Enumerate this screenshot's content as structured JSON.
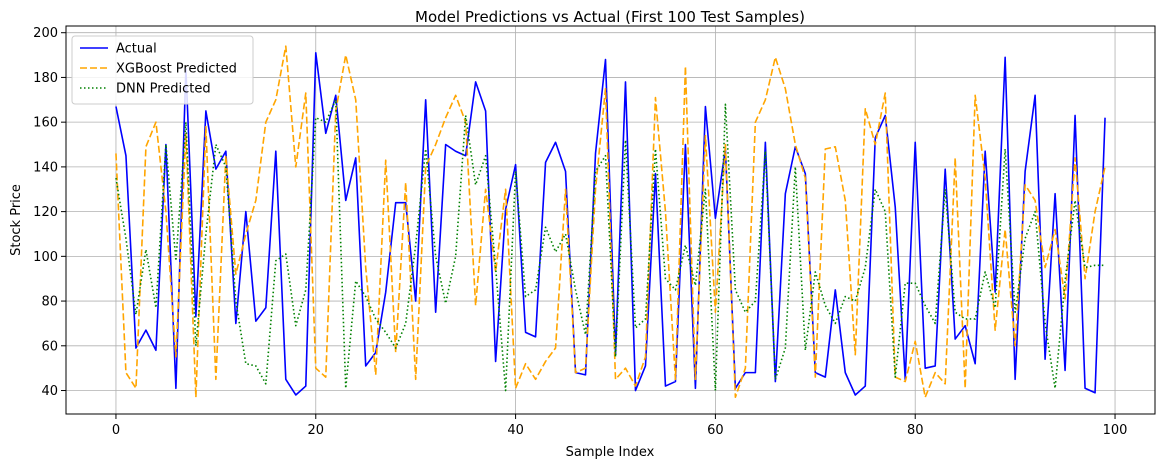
{
  "chart_data": {
    "type": "line",
    "title": "Model Predictions vs Actual (First 100 Test Samples)",
    "xlabel": "Sample Index",
    "ylabel": "Stock Price",
    "xlim": [
      -5,
      104
    ],
    "ylim": [
      29.5,
      203
    ],
    "xticks": [
      0,
      20,
      40,
      60,
      80,
      100
    ],
    "yticks": [
      40,
      60,
      80,
      100,
      120,
      140,
      160,
      180,
      200
    ],
    "grid": true,
    "legend_position": "top-left",
    "series": [
      {
        "name": "Actual",
        "color": "#0000ff",
        "style": "solid",
        "values": [
          167,
          145,
          59,
          67,
          58,
          150,
          41,
          184,
          73,
          165,
          139,
          147,
          70,
          120,
          71,
          77,
          147,
          45,
          38,
          42,
          191,
          155,
          172,
          125,
          144,
          51,
          57,
          84,
          124,
          124,
          80,
          170,
          75,
          150,
          147,
          145,
          178,
          165,
          53,
          121,
          141,
          66,
          64,
          142,
          151,
          138,
          48,
          47,
          146,
          188,
          56,
          178,
          40,
          51,
          137,
          42,
          44,
          150,
          41,
          167,
          117,
          148,
          41,
          48,
          48,
          151,
          44,
          128,
          149,
          137,
          48,
          46,
          85,
          48,
          38,
          42,
          153,
          163,
          122,
          45,
          151,
          50,
          51,
          139,
          63,
          69,
          52,
          147,
          84,
          189,
          45,
          138,
          172,
          54,
          128,
          49,
          163,
          41,
          39,
          162
        ]
      },
      {
        "name": "XGBoost Predicted",
        "color": "#ffa500",
        "style": "dashed",
        "values": [
          146,
          48,
          41,
          149,
          160,
          120,
          55,
          155,
          37,
          158,
          45,
          145,
          92,
          110,
          125,
          160,
          170,
          194,
          140,
          173,
          50,
          46,
          165,
          190,
          170,
          95,
          47,
          143,
          57,
          133,
          45,
          140,
          150,
          162,
          172,
          160,
          78,
          130,
          93,
          130,
          41,
          52,
          45,
          53,
          59,
          130,
          48,
          50,
          130,
          175,
          45,
          50,
          42,
          55,
          171,
          120,
          45,
          185,
          45,
          154,
          75,
          150,
          37,
          50,
          160,
          170,
          189,
          175,
          150,
          135,
          46,
          148,
          149,
          125,
          56,
          166,
          150,
          173,
          46,
          44,
          62,
          37,
          48,
          43,
          144,
          41,
          172,
          135,
          67,
          112,
          60,
          132,
          125,
          95,
          112,
          81,
          144,
          90,
          120,
          140
        ]
      },
      {
        "name": "DNN Predicted",
        "color": "#008000",
        "style": "dotted",
        "values": [
          135,
          108,
          74,
          103,
          77,
          150,
          98,
          160,
          60,
          110,
          150,
          140,
          80,
          52,
          51,
          43,
          98,
          101,
          69,
          85,
          162,
          160,
          170,
          41,
          89,
          82,
          72,
          66,
          59,
          70,
          105,
          148,
          100,
          79,
          100,
          163,
          132,
          145,
          95,
          40,
          138,
          82,
          85,
          113,
          102,
          110,
          85,
          65,
          138,
          145,
          55,
          152,
          68,
          72,
          148,
          90,
          85,
          105,
          87,
          130,
          40,
          168,
          85,
          75,
          80,
          147,
          45,
          59,
          140,
          58,
          93,
          78,
          70,
          82,
          80,
          95,
          130,
          120,
          46,
          88,
          88,
          78,
          70,
          130,
          75,
          72,
          72,
          93,
          77,
          148,
          75,
          108,
          120,
          70,
          41,
          89,
          125,
          95,
          96,
          96
        ]
      }
    ]
  }
}
